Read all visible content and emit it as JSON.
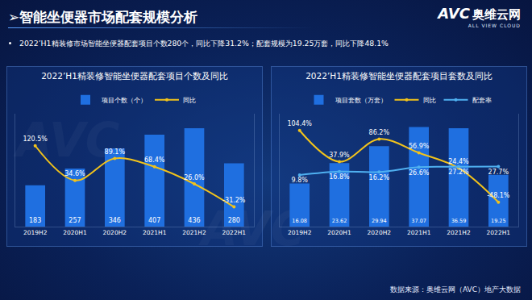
{
  "header": {
    "title": "➢智能坐便器市场配套规模分析",
    "summary": "2022’H1精装修市场智能坐便器配套项目个数280个，同比下降31.2%；配套规模为19.25万套，同比下降48.1%",
    "logo": "AVC",
    "logo_cn": "奥维云网",
    "logo_en": "ALL VIEW CLOUD",
    "source": "数据来源：奥维云网（AVC）地产大数据"
  },
  "chart_data": [
    {
      "type": "bar",
      "title": "2022’H1精装修智能坐便器配套项目个数及同比",
      "categories": [
        "2019H2",
        "2020H1",
        "2020H2",
        "2021H1",
        "2021H2",
        "2022H1"
      ],
      "series": [
        {
          "name": "项目个数（个）",
          "type": "bar",
          "color": "#1f6fe0",
          "values": [
            183,
            257,
            346,
            407,
            436,
            280
          ]
        },
        {
          "name": "同比",
          "type": "line",
          "axis": "y2",
          "color": "#f2c31b",
          "line_style": "smooth",
          "values": [
            120.5,
            34.6,
            89.1,
            68.4,
            26.0,
            -31.2
          ],
          "value_labels": [
            "120.5%",
            "34.6%",
            "89.1%",
            "68.4%",
            "26.0%",
            "-31.2%"
          ]
        }
      ],
      "ylim": [
        0,
        500
      ],
      "y2lim": [
        -80,
        200
      ],
      "data_labels": true,
      "tick_labels": "x",
      "grid": false,
      "legend": "top"
    },
    {
      "type": "bar",
      "title": "2022’H1精装修智能坐便器配套项目套数及同比",
      "categories": [
        "2019H2",
        "2020H1",
        "2020H2",
        "2021H1",
        "2021H2",
        "2022H1"
      ],
      "series": [
        {
          "name": "项目套数（万套）",
          "type": "bar",
          "color": "#1f6fe0",
          "values": [
            16.08,
            23.62,
            29.94,
            37.07,
            36.59,
            19.25
          ]
        },
        {
          "name": "同比",
          "type": "line",
          "axis": "y2",
          "color": "#f2c31b",
          "line_style": "smooth",
          "values": [
            104.4,
            37.9,
            86.2,
            56.9,
            24.4,
            -48.1
          ],
          "value_labels": [
            "104.4%",
            "37.9%",
            "86.2%",
            "56.9%",
            "24.4%",
            "-48.1%"
          ]
        },
        {
          "name": "配套率",
          "type": "line",
          "axis": "y2",
          "color": "#4fb0f0",
          "line_style": "smooth",
          "values": [
            9.8,
            16.8,
            16.2,
            26.6,
            27.2,
            27.7
          ],
          "value_labels": [
            "9.8%",
            "16.8%",
            "16.2%",
            "26.6%",
            "27.2%",
            "27.7%"
          ]
        }
      ],
      "ylim": [
        0,
        42
      ],
      "y2lim": [
        -100,
        140
      ],
      "data_labels": true,
      "tick_labels": "x",
      "grid": false,
      "legend": "top"
    }
  ]
}
